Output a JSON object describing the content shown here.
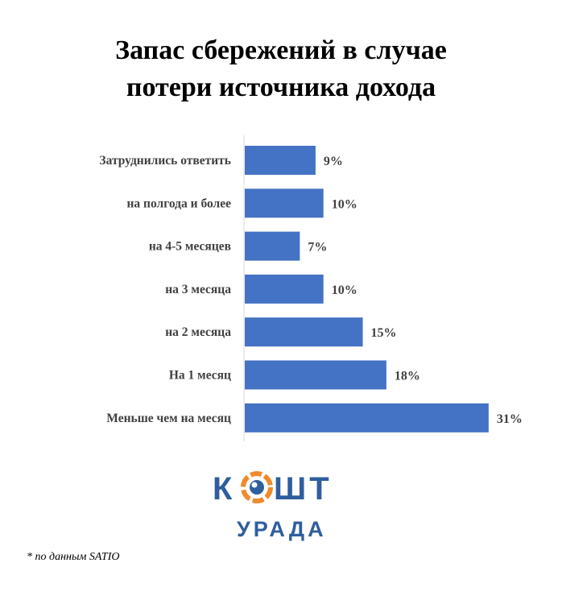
{
  "chart_data": {
    "type": "bar",
    "orientation": "horizontal",
    "title_lines": [
      "Запас сбережений в случае",
      "потери источника дохода"
    ],
    "categories": [
      "Затруднились ответить",
      "на полгода и более",
      "на 4-5 месяцев",
      "на 3 месяца",
      "на 2 месяца",
      "На 1 месяц",
      "Меньше чем на месяц"
    ],
    "values": [
      9,
      10,
      7,
      10,
      15,
      18,
      31
    ],
    "value_labels": [
      "9%",
      "10%",
      "7%",
      "10%",
      "15%",
      "18%",
      "31%"
    ],
    "xlim": [
      0,
      31
    ],
    "grid": false,
    "legend": "none",
    "bar_color": "#4472C4"
  },
  "logo": {
    "line1_left": "К",
    "line1_right": "ШТ",
    "line2": "УРАДА",
    "blue": "#2F5E9E",
    "orange": "#F08A2C"
  },
  "footnote": "* по данным SATIO"
}
